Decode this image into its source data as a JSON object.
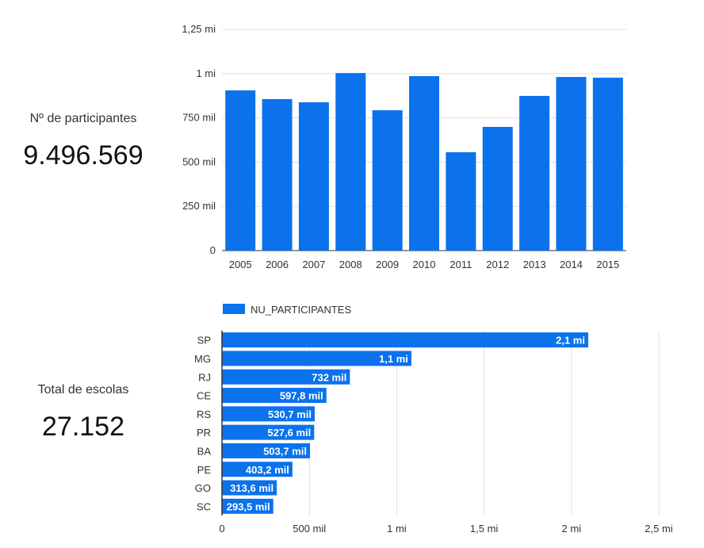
{
  "kpis": [
    {
      "label": "Nº de participantes",
      "value": "9.496.569"
    },
    {
      "label": "Total de escolas",
      "value": "27.152"
    }
  ],
  "colors": {
    "bar": "#0b72ec",
    "grid": "#e0e0e0",
    "axis": "#333333"
  },
  "chart_data": [
    {
      "type": "bar",
      "title": "",
      "categories": [
        "2005",
        "2006",
        "2007",
        "2008",
        "2009",
        "2010",
        "2011",
        "2012",
        "2013",
        "2014",
        "2015"
      ],
      "values": [
        905000,
        856000,
        838000,
        1003000,
        793000,
        986000,
        556000,
        699000,
        874000,
        981000,
        977000
      ],
      "ylim": [
        0,
        1250000
      ],
      "yticks": [
        0,
        250000,
        500000,
        750000,
        1000000,
        1250000
      ],
      "ytick_labels": [
        "0",
        "250 mil",
        "500 mil",
        "750 mil",
        "1 mi",
        "1,25 mi"
      ],
      "grid": true,
      "legend": {
        "entries": [
          "NU_PARTICIPANTES"
        ],
        "placement": "bottom-left"
      }
    },
    {
      "type": "bar",
      "orientation": "horizontal",
      "categories": [
        "SP",
        "MG",
        "RJ",
        "CE",
        "RS",
        "PR",
        "BA",
        "PE",
        "GO",
        "SC"
      ],
      "values": [
        2096000,
        1084000,
        732000,
        597800,
        530700,
        527600,
        503700,
        403200,
        313600,
        293500
      ],
      "data_labels": [
        "2,1 mi",
        "1,1 mi",
        "732 mil",
        "597,8 mil",
        "530,7 mil",
        "527,6 mil",
        "503,7 mil",
        "403,2 mil",
        "313,6 mil",
        "293,5 mil"
      ],
      "xlim": [
        0,
        2500000
      ],
      "xticks": [
        0,
        500000,
        1000000,
        1500000,
        2000000,
        2500000
      ],
      "xtick_labels": [
        "0",
        "500 mil",
        "1 mi",
        "1,5 mi",
        "2 mi",
        "2,5 mi"
      ],
      "grid": true
    }
  ]
}
